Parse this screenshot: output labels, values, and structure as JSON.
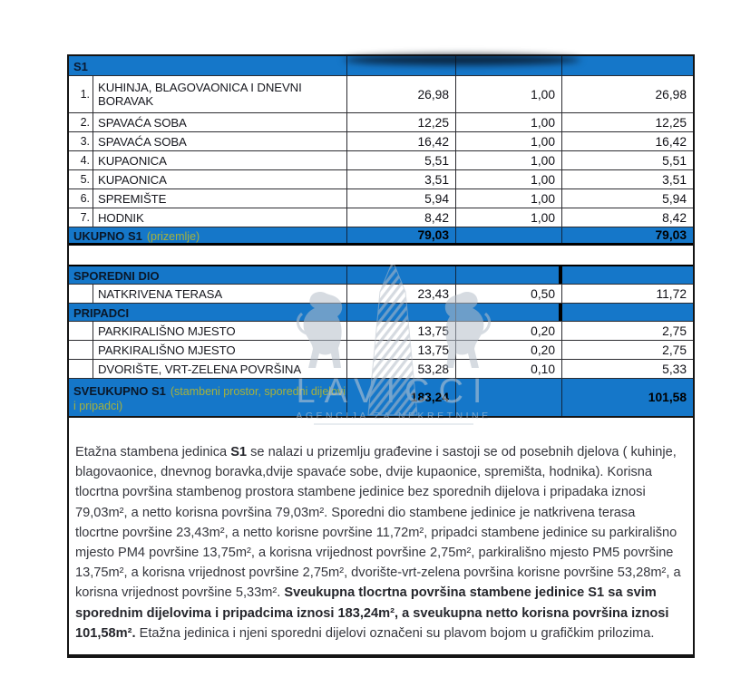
{
  "colors": {
    "table_blue": "#1577c9",
    "note_green": "#a6b13c",
    "border_black": "#141414",
    "watermark_gray": "#c3cbd5"
  },
  "table": {
    "rows": [
      {
        "type": "header",
        "name": "S1",
        "area": "",
        "coef": "",
        "value": ""
      },
      {
        "type": "item",
        "size": "tall",
        "num": "1.",
        "name": "KUHINJA, BLAGOVAONICA I DNEVNI BORAVAK",
        "area": "26,98",
        "coef": "1,00",
        "value": "26,98"
      },
      {
        "type": "item",
        "num": "2.",
        "name": "SPAVAĆA SOBA",
        "area": "12,25",
        "coef": "1,00",
        "value": "12,25"
      },
      {
        "type": "item",
        "num": "3.",
        "name": "SPAVAĆA SOBA",
        "area": "16,42",
        "coef": "1,00",
        "value": "16,42"
      },
      {
        "type": "item",
        "num": "4.",
        "name": "KUPAONICA",
        "area": "5,51",
        "coef": "1,00",
        "value": "5,51"
      },
      {
        "type": "item",
        "num": "5.",
        "name": "KUPAONICA",
        "area": "3,51",
        "coef": "1,00",
        "value": "3,51"
      },
      {
        "type": "item",
        "num": "6.",
        "name": "SPREMIŠTE",
        "area": "5,94",
        "coef": "1,00",
        "value": "5,94"
      },
      {
        "type": "item",
        "num": "7.",
        "name": "HODNIK",
        "area": "8,42",
        "coef": "1,00",
        "value": "8,42"
      },
      {
        "type": "total",
        "name": "UKUPNO S1",
        "note": "(prizemlje)",
        "area": "79,03",
        "coef": "",
        "value": "79,03"
      },
      {
        "type": "spacer"
      },
      {
        "type": "section",
        "name": "SPOREDNI DIO",
        "area": "",
        "coef": "",
        "value": ""
      },
      {
        "type": "item",
        "num": "",
        "name": "NATKRIVENA TERASA",
        "area": "23,43",
        "coef": "0,50",
        "value": "11,72"
      },
      {
        "type": "section",
        "name": "PRIPADCI",
        "area": "",
        "coef": "",
        "value": ""
      },
      {
        "type": "item",
        "num": "",
        "name": "PARKIRALIŠNO MJESTO",
        "area": "13,75",
        "coef": "0,20",
        "value": "2,75"
      },
      {
        "type": "item",
        "num": "",
        "name": "PARKIRALIŠNO MJESTO",
        "area": "13,75",
        "coef": "0,20",
        "value": "2,75"
      },
      {
        "type": "item",
        "num": "",
        "name": "DVORIŠTE, VRT-ZELENA POVRŠINA",
        "area": "53,28",
        "coef": "0,10",
        "value": "5,33"
      },
      {
        "type": "total",
        "size": "tall",
        "name": "SVEUKUPNO S1",
        "note": "(stambeni prostor, sporedni dijelovi i pripadci)",
        "area": "183,24",
        "coef": "",
        "value": "101,58"
      }
    ]
  },
  "watermark": {
    "brand": "LAVICCI",
    "tagline": "AGENCIJA ZA NEKRETNINE"
  },
  "description": {
    "segments": [
      {
        "bold": false,
        "text": "Etažna stambena jedinica "
      },
      {
        "bold": true,
        "text": "S1"
      },
      {
        "bold": false,
        "text": " se nalazi u prizemlju građevine i sastoji se od posebnih djelova ( kuhinje, blagovaonice, dnevnog boravka,dvije spavaće sobe, dvije kupaonice, spremišta, hodnika). Korisna tlocrtna površina stambenog prostora stambene jedinice bez sporednih dijelova i pripadaka iznosi 79,03m², a netto korisna površina 79,03m². Sporedni dio stambene jedinice je natkrivena terasa tlocrtne površine 23,43m², a netto korisne površine 11,72m², pripadci stambene jedinice su parkirališno mjesto PM4 površine 13,75m², a korisna vrijednost površine 2,75m², parkirališno mjesto PM5 površine 13,75m², a korisna vrijednost površine 2,75m², dvorište-vrt-zelena površina korisne površine 53,28m², a korisna vrijednost površine 5,33m². "
      },
      {
        "bold": true,
        "text": "Sveukupna tlocrtna površina stambene jedinice S1 sa svim sporednim dijelovima i pripadcima iznosi 183,24m², a sveukupna netto korisna površina iznosi 101,58m²."
      },
      {
        "bold": false,
        "text": " Etažna jedinica i njeni sporedni dijelovi označeni su plavom bojom u grafičkim prilozima."
      }
    ]
  }
}
